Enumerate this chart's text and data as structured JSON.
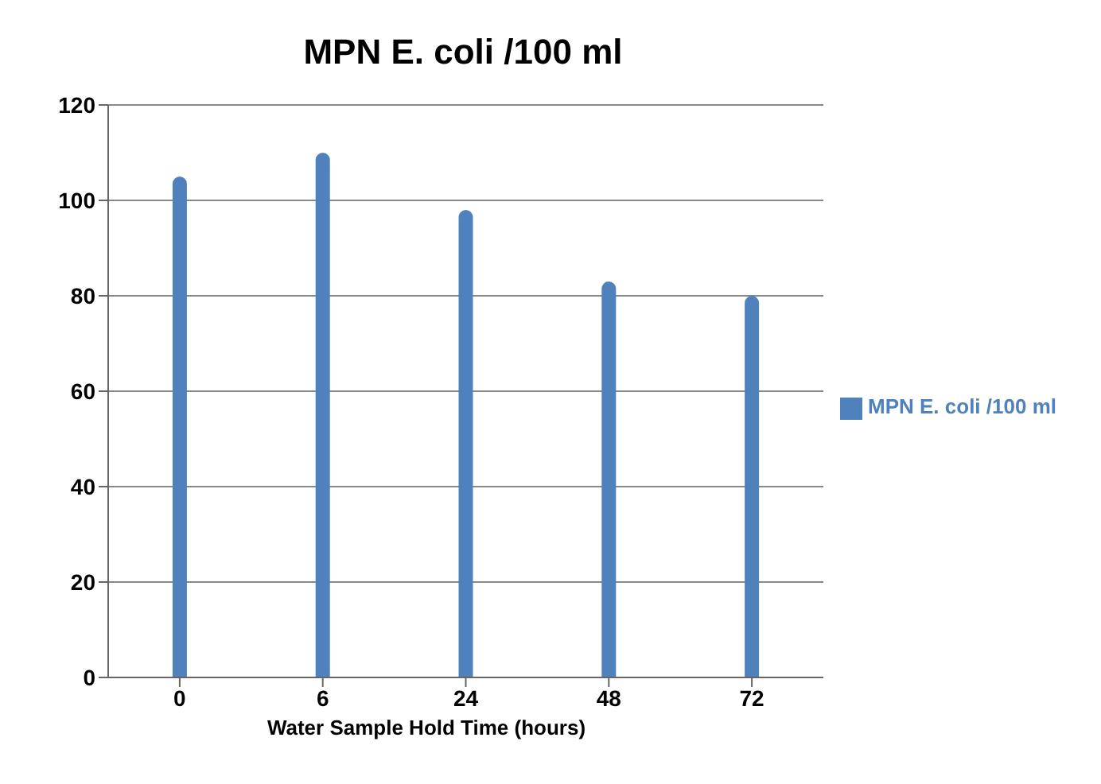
{
  "chart_data": {
    "type": "bar",
    "title": "MPN E. coli /100 ml",
    "xlabel": "Water Sample Hold Time (hours)",
    "categories": [
      "0",
      "6",
      "24",
      "48",
      "72"
    ],
    "series": [
      {
        "name": "MPN E. coli /100 ml",
        "color": "#4f81bd",
        "values": [
          105,
          110,
          98,
          83,
          80
        ]
      }
    ],
    "ylim": [
      0,
      120
    ],
    "yticks": [
      0,
      20,
      40,
      60,
      80,
      100,
      120
    ],
    "grid": "y",
    "legend": "right"
  }
}
